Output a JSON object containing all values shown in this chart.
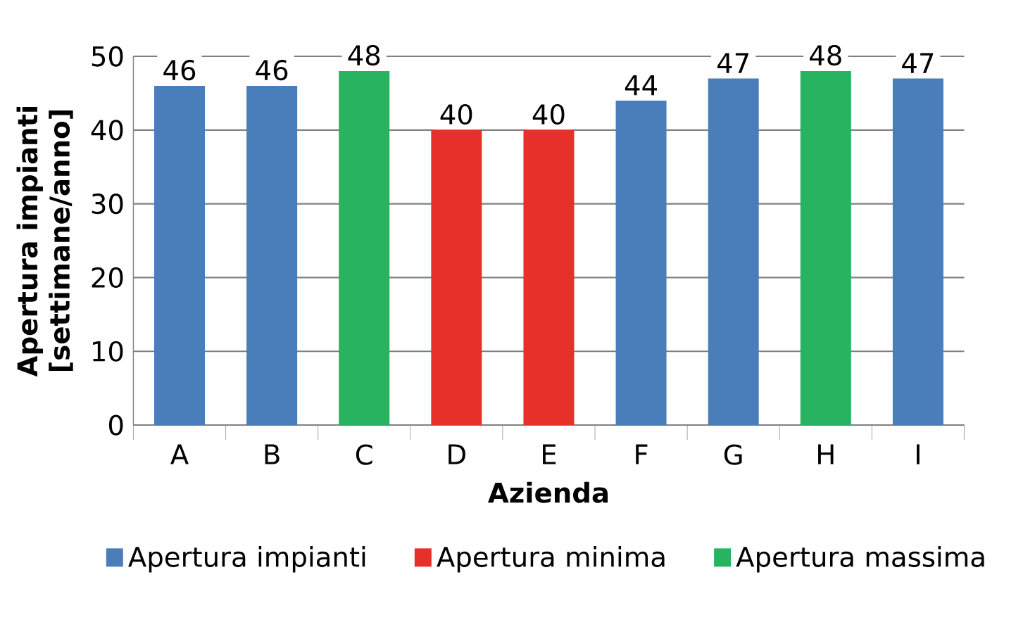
{
  "chart_data": {
    "type": "bar",
    "xlabel": "Azienda",
    "ylabel": "Apertura impianti [settimane/anno]",
    "categories": [
      "A",
      "B",
      "C",
      "D",
      "E",
      "F",
      "G",
      "H",
      "I"
    ],
    "series": [
      {
        "name": "Apertura impianti",
        "color": "#4a7ebb",
        "values": [
          46,
          46,
          null,
          null,
          null,
          44,
          47,
          null,
          47
        ]
      },
      {
        "name": "Apertura minima",
        "color": "#e8302a",
        "values": [
          null,
          null,
          null,
          40,
          40,
          null,
          null,
          null,
          null
        ]
      },
      {
        "name": "Apertura massima",
        "color": "#27b35f",
        "values": [
          null,
          null,
          48,
          null,
          null,
          null,
          null,
          48,
          null
        ]
      }
    ],
    "ylim": [
      0,
      50
    ],
    "yticks": [
      0,
      10,
      20,
      30,
      40,
      50
    ],
    "grid": "y",
    "legend": "bottom",
    "data_labels": true
  }
}
